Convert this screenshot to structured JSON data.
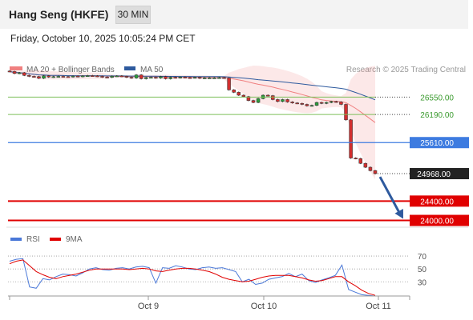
{
  "header": {
    "title": "Hang Seng (HKFE)",
    "interval": "30 MIN",
    "datetime": "Friday, October 10, 2025 10:05:24 PM CET"
  },
  "chart_data": {
    "type": "candlestick",
    "legend": [
      {
        "label": "MA 20 + Bollinger Bands",
        "color": "#f08080"
      },
      {
        "label": "MA 50",
        "color": "#2e5a9e"
      }
    ],
    "credit": "Research © 2025 Trading Central",
    "price_range": [
      23860,
      27500
    ],
    "levels": [
      {
        "value": 26550,
        "label": "26550.00",
        "kind": "resistance",
        "color": "#7dbf5a"
      },
      {
        "value": 26190,
        "label": "26190.00",
        "kind": "resistance",
        "color": "#7dbf5a"
      },
      {
        "value": 25610,
        "label": "25610.00",
        "kind": "pivot",
        "color": "#3d7be0"
      },
      {
        "value": 24968,
        "label": "24968.00",
        "kind": "last",
        "color": "#222222"
      },
      {
        "value": 24400,
        "label": "24400.00",
        "kind": "support",
        "color": "#e00000"
      },
      {
        "value": 24000,
        "label": "24000.00",
        "kind": "support",
        "color": "#e00000"
      }
    ],
    "forecast": {
      "from": 24968,
      "to": 24000
    },
    "closes": [
      27080,
      27040,
      27055,
      27000,
      26980,
      26975,
      26940,
      26990,
      26965,
      26975,
      26980,
      26975,
      26970,
      26985,
      26975,
      26990,
      26995,
      26990,
      26980,
      26965,
      26960,
      26985,
      26990,
      26980,
      26960,
      26945,
      27010,
      26930,
      26955,
      26960,
      26945,
      26975,
      26930,
      26960,
      26950,
      26965,
      26955,
      26950,
      26960,
      26940,
      26950,
      26950,
      26950,
      26955,
      26945,
      26700,
      26650,
      26590,
      26560,
      26480,
      26440,
      26520,
      26590,
      26580,
      26500,
      26460,
      26500,
      26450,
      26430,
      26420,
      26400,
      26370,
      26380,
      26440,
      26420,
      26440,
      26460,
      26450,
      26400,
      26080,
      25290,
      25280,
      25180,
      25100,
      25030,
      24968
    ],
    "x_ticks": [
      "Oct 9",
      "Oct 10",
      "Oct 11"
    ],
    "rsi": {
      "legend": [
        {
          "label": "RSI",
          "color": "#4a78d8"
        },
        {
          "label": "9MA",
          "color": "#e00000"
        }
      ],
      "levels": [
        70,
        50,
        30
      ],
      "range": [
        8,
        80
      ],
      "rsi_values": [
        62,
        65,
        66,
        22,
        20,
        35,
        33,
        38,
        42,
        41,
        39,
        44,
        50,
        52,
        49,
        48,
        51,
        52,
        50,
        53,
        54,
        52,
        28,
        52,
        51,
        55,
        53,
        50,
        49,
        52,
        53,
        51,
        52,
        49,
        46,
        30,
        34,
        26,
        28,
        34,
        36,
        38,
        43,
        38,
        42,
        32,
        29,
        33,
        36,
        40,
        56,
        18,
        14,
        10,
        9,
        8
      ],
      "ma_values": [
        58,
        62,
        64,
        55,
        46,
        41,
        37,
        35,
        38,
        40,
        42,
        45,
        48,
        50,
        50,
        50,
        50,
        50,
        49,
        50,
        51,
        50,
        47,
        46,
        48,
        50,
        51,
        51,
        50,
        48,
        46,
        42,
        37,
        34,
        32,
        30,
        31,
        34,
        37,
        39,
        40,
        40,
        40,
        38,
        36,
        33,
        31,
        32,
        35,
        38,
        38,
        30,
        24,
        17,
        12,
        9
      ]
    }
  }
}
